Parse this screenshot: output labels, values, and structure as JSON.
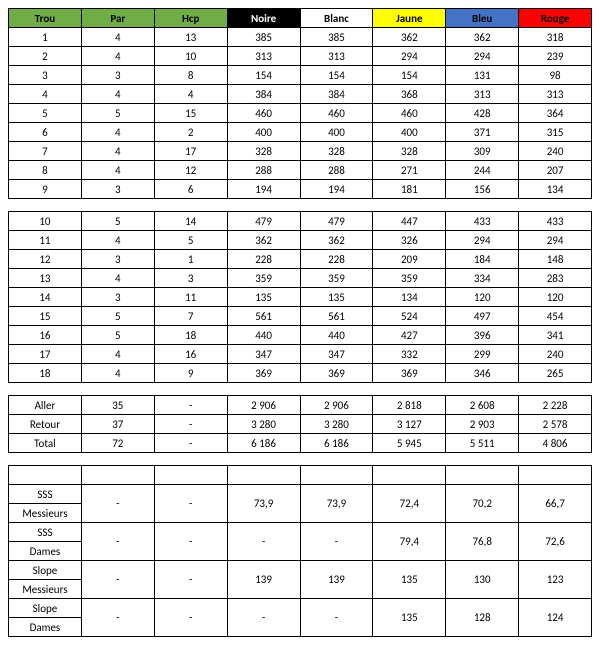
{
  "headers": {
    "trou": {
      "label": "Trou",
      "bg": "#70ad47",
      "fg": "#000000"
    },
    "par": {
      "label": "Par",
      "bg": "#70ad47",
      "fg": "#000000"
    },
    "hcp": {
      "label": "Hcp",
      "bg": "#70ad47",
      "fg": "#000000"
    },
    "noire": {
      "label": "Noire",
      "bg": "#000000",
      "fg": "#ffffff"
    },
    "blanc": {
      "label": "Blanc",
      "bg": "#ffffff",
      "fg": "#000000"
    },
    "jaune": {
      "label": "Jaune",
      "bg": "#ffff00",
      "fg": "#000000"
    },
    "bleu": {
      "label": "Bleu",
      "bg": "#4472c4",
      "fg": "#000000"
    },
    "rouge": {
      "label": "Rouge",
      "bg": "#ff0000",
      "fg": "#000000"
    }
  },
  "col_order": [
    "trou",
    "par",
    "hcp",
    "noire",
    "blanc",
    "jaune",
    "bleu",
    "rouge"
  ],
  "front9": [
    {
      "trou": "1",
      "par": "4",
      "hcp": "13",
      "noire": "385",
      "blanc": "385",
      "jaune": "362",
      "bleu": "362",
      "rouge": "318"
    },
    {
      "trou": "2",
      "par": "4",
      "hcp": "10",
      "noire": "313",
      "blanc": "313",
      "jaune": "294",
      "bleu": "294",
      "rouge": "239"
    },
    {
      "trou": "3",
      "par": "3",
      "hcp": "8",
      "noire": "154",
      "blanc": "154",
      "jaune": "154",
      "bleu": "131",
      "rouge": "98"
    },
    {
      "trou": "4",
      "par": "4",
      "hcp": "4",
      "noire": "384",
      "blanc": "384",
      "jaune": "368",
      "bleu": "313",
      "rouge": "313"
    },
    {
      "trou": "5",
      "par": "5",
      "hcp": "15",
      "noire": "460",
      "blanc": "460",
      "jaune": "460",
      "bleu": "428",
      "rouge": "364"
    },
    {
      "trou": "6",
      "par": "4",
      "hcp": "2",
      "noire": "400",
      "blanc": "400",
      "jaune": "400",
      "bleu": "371",
      "rouge": "315"
    },
    {
      "trou": "7",
      "par": "4",
      "hcp": "17",
      "noire": "328",
      "blanc": "328",
      "jaune": "328",
      "bleu": "309",
      "rouge": "240"
    },
    {
      "trou": "8",
      "par": "4",
      "hcp": "12",
      "noire": "288",
      "blanc": "288",
      "jaune": "271",
      "bleu": "244",
      "rouge": "207"
    },
    {
      "trou": "9",
      "par": "3",
      "hcp": "6",
      "noire": "194",
      "blanc": "194",
      "jaune": "181",
      "bleu": "156",
      "rouge": "134"
    }
  ],
  "back9": [
    {
      "trou": "10",
      "par": "5",
      "hcp": "14",
      "noire": "479",
      "blanc": "479",
      "jaune": "447",
      "bleu": "433",
      "rouge": "433"
    },
    {
      "trou": "11",
      "par": "4",
      "hcp": "5",
      "noire": "362",
      "blanc": "362",
      "jaune": "326",
      "bleu": "294",
      "rouge": "294"
    },
    {
      "trou": "12",
      "par": "3",
      "hcp": "1",
      "noire": "228",
      "blanc": "228",
      "jaune": "209",
      "bleu": "184",
      "rouge": "148"
    },
    {
      "trou": "13",
      "par": "4",
      "hcp": "3",
      "noire": "359",
      "blanc": "359",
      "jaune": "359",
      "bleu": "334",
      "rouge": "283"
    },
    {
      "trou": "14",
      "par": "3",
      "hcp": "11",
      "noire": "135",
      "blanc": "135",
      "jaune": "134",
      "bleu": "120",
      "rouge": "120"
    },
    {
      "trou": "15",
      "par": "5",
      "hcp": "7",
      "noire": "561",
      "blanc": "561",
      "jaune": "524",
      "bleu": "497",
      "rouge": "454"
    },
    {
      "trou": "16",
      "par": "5",
      "hcp": "18",
      "noire": "440",
      "blanc": "440",
      "jaune": "427",
      "bleu": "396",
      "rouge": "341"
    },
    {
      "trou": "17",
      "par": "4",
      "hcp": "16",
      "noire": "347",
      "blanc": "347",
      "jaune": "332",
      "bleu": "299",
      "rouge": "240"
    },
    {
      "trou": "18",
      "par": "4",
      "hcp": "9",
      "noire": "369",
      "blanc": "369",
      "jaune": "369",
      "bleu": "346",
      "rouge": "265"
    }
  ],
  "totals": [
    {
      "trou": "Aller",
      "par": "35",
      "hcp": "-",
      "noire": "2 906",
      "blanc": "2 906",
      "jaune": "2 818",
      "bleu": "2 608",
      "rouge": "2 228"
    },
    {
      "trou": "Retour",
      "par": "37",
      "hcp": "-",
      "noire": "3 280",
      "blanc": "3 280",
      "jaune": "3 127",
      "bleu": "2 903",
      "rouge": "2 578"
    },
    {
      "trou": "Total",
      "par": "72",
      "hcp": "-",
      "noire": "6 186",
      "blanc": "6 186",
      "jaune": "5 945",
      "bleu": "5 511",
      "rouge": "4 806"
    }
  ],
  "ratings": [
    {
      "l1": "SSS",
      "l2": "Messieurs",
      "par": "-",
      "hcp": "-",
      "noire": "73,9",
      "blanc": "73,9",
      "jaune": "72,4",
      "bleu": "70,2",
      "rouge": "66,7"
    },
    {
      "l1": "SSS",
      "l2": "Dames",
      "par": "-",
      "hcp": "-",
      "noire": "-",
      "blanc": "-",
      "jaune": "79,4",
      "bleu": "76,8",
      "rouge": "72,6"
    },
    {
      "l1": "Slope",
      "l2": "Messieurs",
      "par": "-",
      "hcp": "-",
      "noire": "139",
      "blanc": "139",
      "jaune": "135",
      "bleu": "130",
      "rouge": "123"
    },
    {
      "l1": "Slope",
      "l2": "Dames",
      "par": "-",
      "hcp": "-",
      "noire": "-",
      "blanc": "-",
      "jaune": "135",
      "bleu": "128",
      "rouge": "124"
    }
  ]
}
